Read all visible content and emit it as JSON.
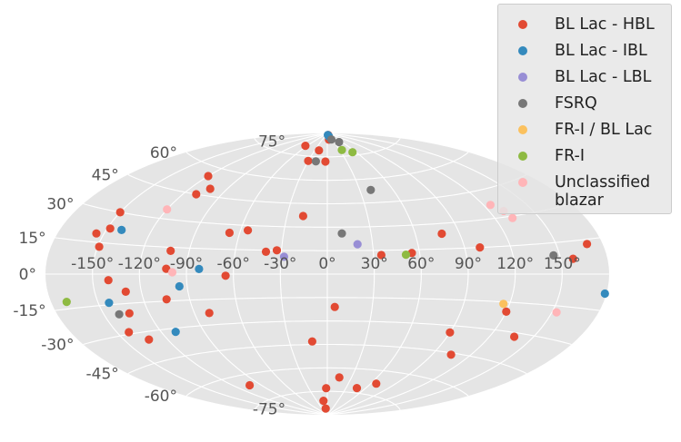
{
  "chart_data": {
    "type": "scatter",
    "projection": "aitoff",
    "xlabel": "",
    "ylabel": "",
    "lon_ticks": [
      "-150°",
      "-120°",
      "-90°",
      "-60°",
      "-30°",
      "0°",
      "30°",
      "60°",
      "90°",
      "120°",
      "150°"
    ],
    "lat_ticks": [
      "-75°",
      "-60°",
      "-45°",
      "-30°",
      "-15°",
      "0°",
      "15°",
      "30°",
      "45°",
      "60°",
      "75°"
    ],
    "grid": true,
    "legend_position": "top-right",
    "series": [
      {
        "name": "BL Lac - HBL",
        "color": "#E24A33",
        "points": [
          [
            -65,
            81
          ],
          [
            -30,
            72
          ],
          [
            -20,
            79
          ],
          [
            -3,
            72
          ],
          [
            10,
            86
          ],
          [
            22,
            89
          ],
          [
            -120,
            55
          ],
          [
            -104,
            49
          ],
          [
            -110,
            45
          ],
          [
            -18,
            37
          ],
          [
            -150,
            30
          ],
          [
            -148,
            22
          ],
          [
            -155,
            19
          ],
          [
            -67,
            25
          ],
          [
            -55,
            27
          ],
          [
            -149,
            13
          ],
          [
            -102,
            13
          ],
          [
            -40,
            14
          ],
          [
            -33,
            15
          ],
          [
            35,
            12
          ],
          [
            55,
            13
          ],
          [
            78,
            24
          ],
          [
            100,
            15
          ],
          [
            -103,
            3
          ],
          [
            -140,
            -3
          ],
          [
            -65,
            -1
          ],
          [
            -130,
            -9
          ],
          [
            -105,
            -14
          ],
          [
            -133,
            -20
          ],
          [
            -80,
            -23
          ],
          [
            5,
            -21
          ],
          [
            120,
            -20
          ],
          [
            -142,
            -29
          ],
          [
            -133,
            -34
          ],
          [
            90,
            -34
          ],
          [
            137,
            -32
          ],
          [
            -12,
            -43
          ],
          [
            15,
            -66
          ],
          [
            105,
            -46
          ],
          [
            -2,
            -73
          ],
          [
            -11,
            -81
          ],
          [
            -10,
            -86
          ],
          [
            47,
            -72
          ],
          [
            67,
            -68
          ],
          [
            -103,
            -66
          ],
          [
            158,
            7
          ],
          [
            170,
            13
          ]
        ]
      },
      {
        "name": "BL Lac - IBL",
        "color": "#348ABD",
        "points": [
          [
            13,
            89
          ],
          [
            20,
            88
          ],
          [
            -140,
            22
          ],
          [
            -82,
            3
          ],
          [
            -143,
            -14
          ],
          [
            -95,
            -7
          ],
          [
            -110,
            -32
          ],
          [
            179,
            -8
          ]
        ]
      },
      {
        "name": "BL Lac - LBL",
        "color": "#988ED5",
        "points": [
          [
            20,
            19
          ],
          [
            -28,
            11
          ]
        ]
      },
      {
        "name": "FSRQ",
        "color": "#777777",
        "points": [
          [
            25,
            86
          ],
          [
            50,
            84
          ],
          [
            -18,
            72
          ],
          [
            10,
            26
          ],
          [
            40,
            53
          ],
          [
            -140,
            -20
          ],
          [
            146,
            9
          ]
        ]
      },
      {
        "name": "FR-I / BL Lac",
        "color": "#FBC15E",
        "points": [
          [
            116,
            -16
          ]
        ]
      },
      {
        "name": "FR-I",
        "color": "#8EBA42",
        "points": [
          [
            35,
            79
          ],
          [
            53,
            77
          ],
          [
            51,
            12
          ],
          [
            -170,
            -12
          ]
        ]
      },
      {
        "name": "Unclassified\nblazar",
        "color": "#FFB5B8",
        "points": [
          [
            -120,
            35
          ],
          [
            -99,
            1
          ],
          [
            125,
            37
          ],
          [
            130,
            33
          ],
          [
            132,
            29
          ],
          [
            153,
            -18
          ]
        ]
      }
    ]
  }
}
